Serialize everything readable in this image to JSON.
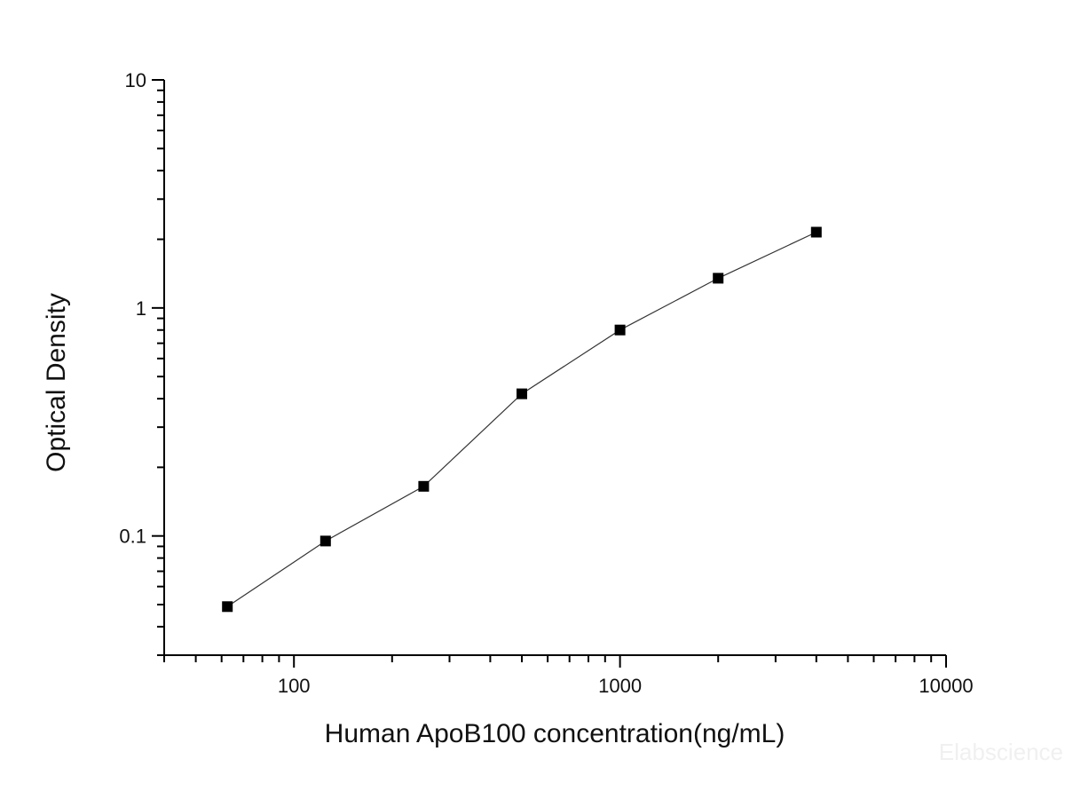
{
  "chart_data": {
    "type": "line",
    "title": "",
    "xlabel": "Human ApoB100   concentration(ng/mL)",
    "ylabel": "Optical  Density",
    "x_scale": "log",
    "y_scale": "log",
    "xlim": [
      40,
      10000
    ],
    "ylim": [
      0.03,
      10
    ],
    "x_ticks": [
      100,
      1000,
      10000
    ],
    "x_tick_labels": [
      "100",
      "1000",
      "10000"
    ],
    "y_ticks": [
      0.1,
      1,
      10
    ],
    "y_tick_labels": [
      "0.1",
      "1",
      "10"
    ],
    "grid": false,
    "legend": "none",
    "marker": "square",
    "series": [
      {
        "x": [
          62.5,
          125,
          250,
          500,
          1000,
          2000,
          4000
        ],
        "y": [
          0.049,
          0.095,
          0.165,
          0.42,
          0.8,
          1.35,
          2.15
        ]
      }
    ],
    "colors": {
      "line": "#333333",
      "marker": "#000000",
      "axis": "#000000"
    }
  },
  "watermark": "Elabscience"
}
